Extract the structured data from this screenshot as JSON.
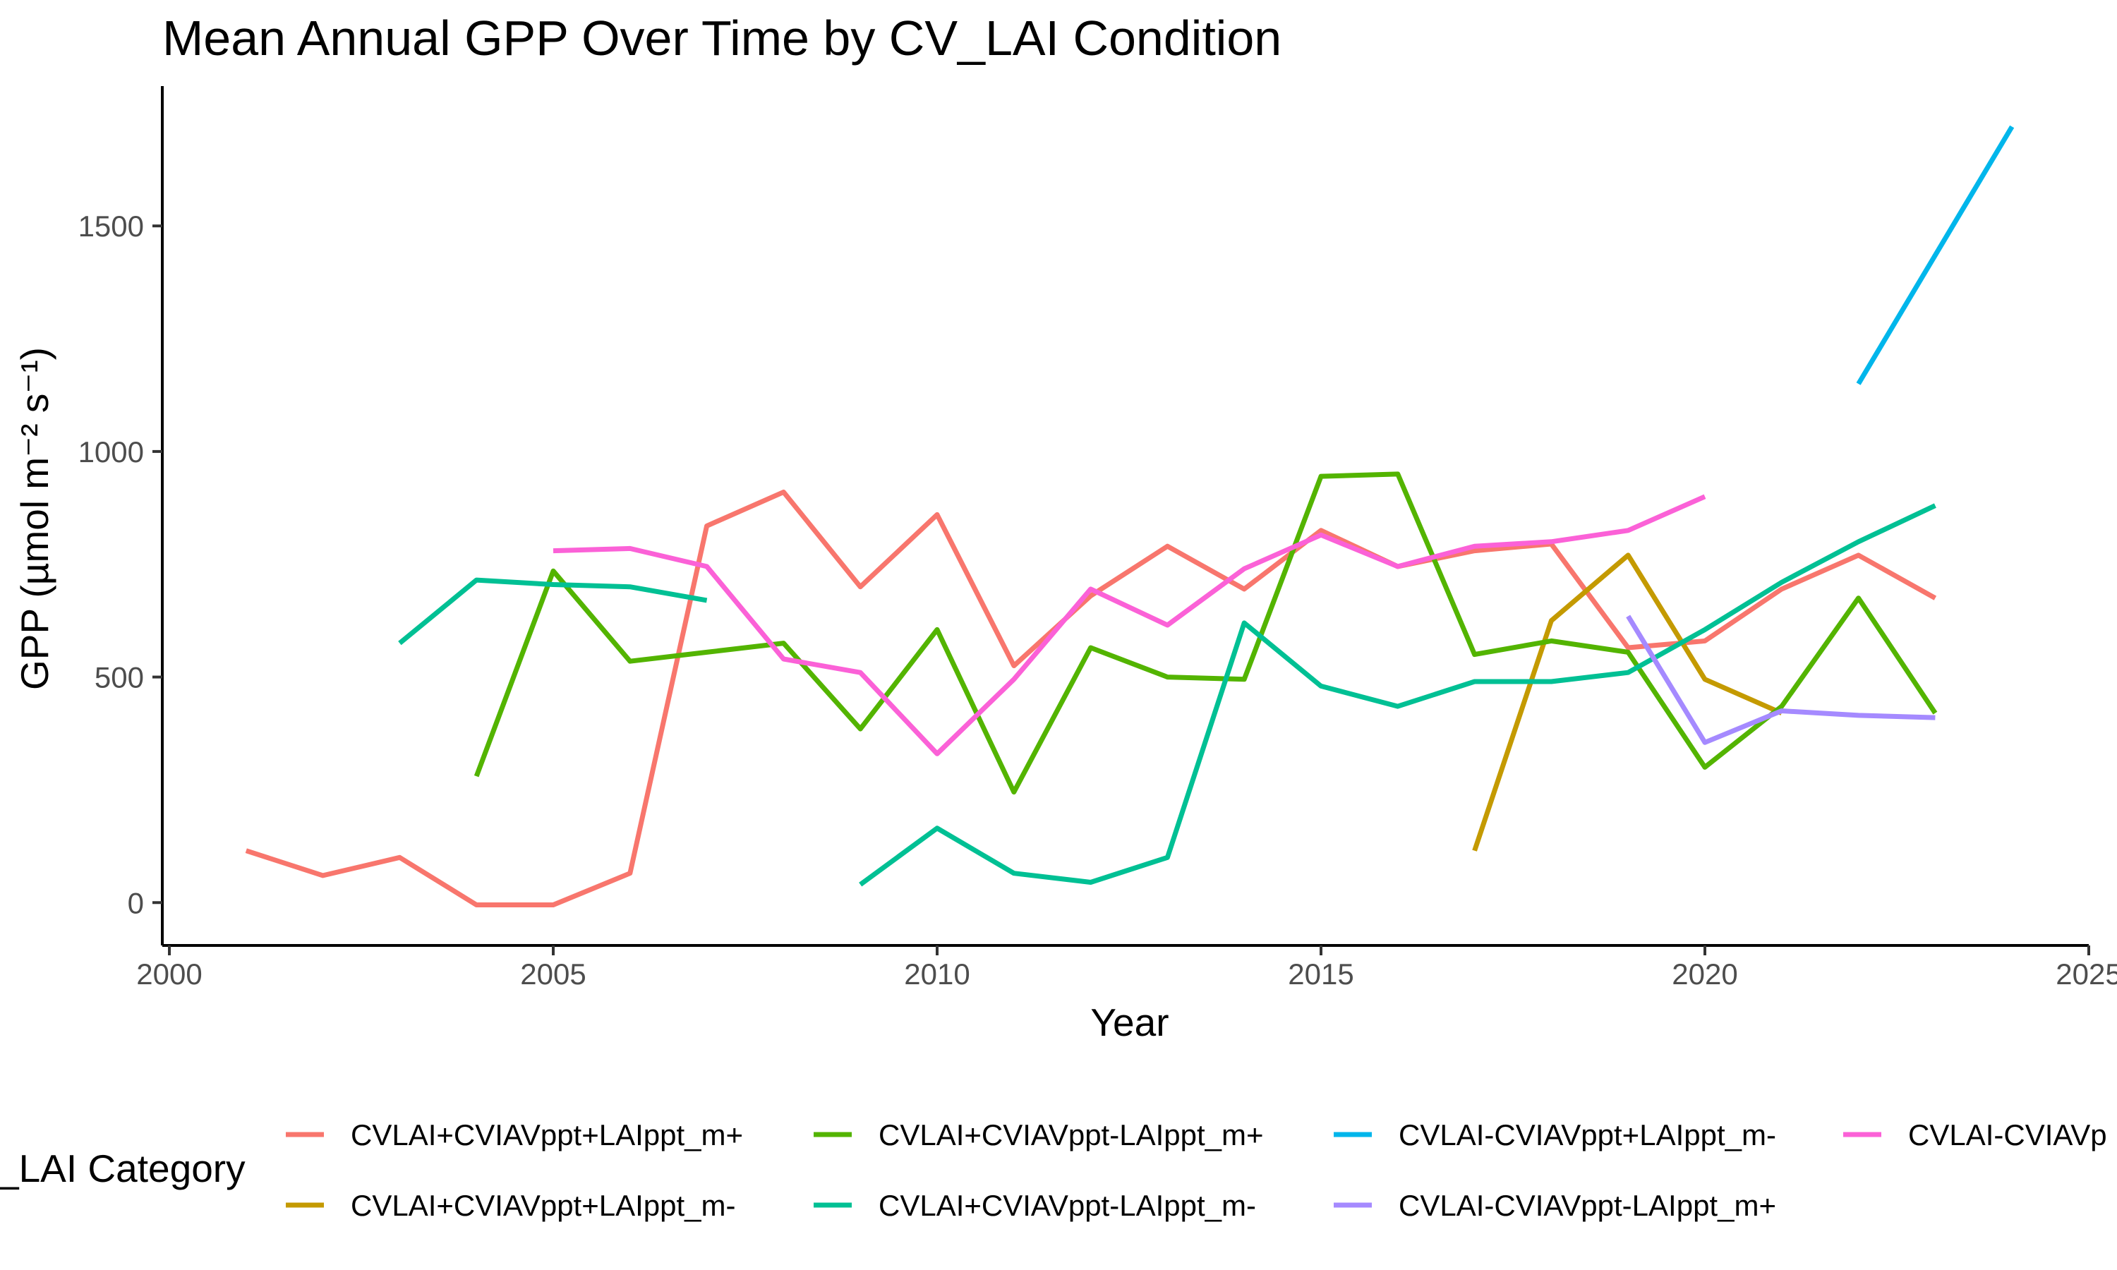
{
  "chart_data": {
    "type": "line",
    "title": "Mean Annual GPP Over Time by CV_LAI Condition",
    "xlabel": "Year",
    "ylabel": "GPP (µmol m⁻² s⁻¹)",
    "xlim": [
      2000,
      2025
    ],
    "ylim": [
      -95,
      1810
    ],
    "x_ticks": [
      2000,
      2005,
      2010,
      2015,
      2020,
      2025
    ],
    "x_tick_labels": [
      "2000",
      "2005",
      "2010",
      "2015",
      "2020",
      "2025"
    ],
    "y_ticks": [
      0,
      500,
      1000,
      1500
    ],
    "y_tick_labels": [
      "0",
      "500",
      "1000",
      "1500"
    ],
    "grid": false,
    "legend": {
      "title": "_LAI Category",
      "placement": "bottom"
    },
    "series": [
      {
        "name": "CVLAI+CVIAVppt+LAIppt_m+",
        "color": "#F8766D",
        "x": [
          2001,
          2002,
          2003,
          2004,
          2005,
          2006,
          2007,
          2008,
          2009,
          2010,
          2011,
          2012,
          2013,
          2014,
          2015,
          2016,
          2017,
          2018,
          2019,
          2020,
          2021,
          2022,
          2023
        ],
        "y": [
          115,
          60,
          100,
          -5,
          -5,
          65,
          835,
          910,
          700,
          860,
          525,
          680,
          790,
          695,
          825,
          745,
          780,
          795,
          565,
          580,
          695,
          770,
          675
        ]
      },
      {
        "name": "CVLAI+CVIAVppt+LAIppt_m-",
        "color": "#C49A00",
        "x": [
          2017,
          2018,
          2019,
          2020,
          2021
        ],
        "y": [
          115,
          625,
          770,
          495,
          420
        ]
      },
      {
        "name": "CVLAI+CVIAVppt-LAIppt_m+",
        "color": "#53B400",
        "x": [
          2004,
          2005,
          2006,
          2007,
          2008,
          2009,
          2010,
          2011,
          2012,
          2013,
          2014,
          2015,
          2016,
          2017,
          2018,
          2019,
          2020,
          2021,
          2022,
          2023
        ],
        "y": [
          280,
          735,
          535,
          555,
          575,
          385,
          605,
          245,
          565,
          500,
          495,
          945,
          950,
          550,
          580,
          555,
          300,
          435,
          675,
          420
        ]
      },
      {
        "name": "CVLAI+CVIAVppt-LAIppt_m-",
        "color": "#00C094",
        "segments": [
          {
            "x": [
              2003,
              2004,
              2005,
              2006,
              2007
            ],
            "y": [
              575,
              715,
              705,
              700,
              670
            ]
          },
          {
            "x": [
              2009,
              2010,
              2011,
              2012,
              2013,
              2014,
              2015,
              2016,
              2017,
              2018,
              2019,
              2020,
              2021,
              2022,
              2023
            ],
            "y": [
              40,
              165,
              65,
              45,
              100,
              620,
              480,
              435,
              490,
              490,
              510,
              605,
              710,
              800,
              880
            ]
          }
        ]
      },
      {
        "name": "CVLAI-CVIAVppt+LAIppt_m-",
        "color": "#00B6EB",
        "x": [
          2022,
          2024
        ],
        "y": [
          1150,
          1720
        ]
      },
      {
        "name": "CVLAI-CVIAVppt-LAIppt_m+",
        "color": "#A58AFF",
        "x": [
          2019,
          2020,
          2021,
          2022,
          2023
        ],
        "y": [
          635,
          355,
          425,
          415,
          410
        ]
      },
      {
        "name": "CVLAI-CVIAVp",
        "color": "#FB61D7",
        "x": [
          2005,
          2006,
          2007,
          2008,
          2009,
          2010,
          2011,
          2012,
          2013,
          2014,
          2015,
          2016,
          2017,
          2018,
          2019,
          2020
        ],
        "y": [
          780,
          785,
          745,
          540,
          510,
          330,
          495,
          695,
          615,
          740,
          815,
          745,
          790,
          800,
          825,
          900
        ]
      }
    ]
  }
}
